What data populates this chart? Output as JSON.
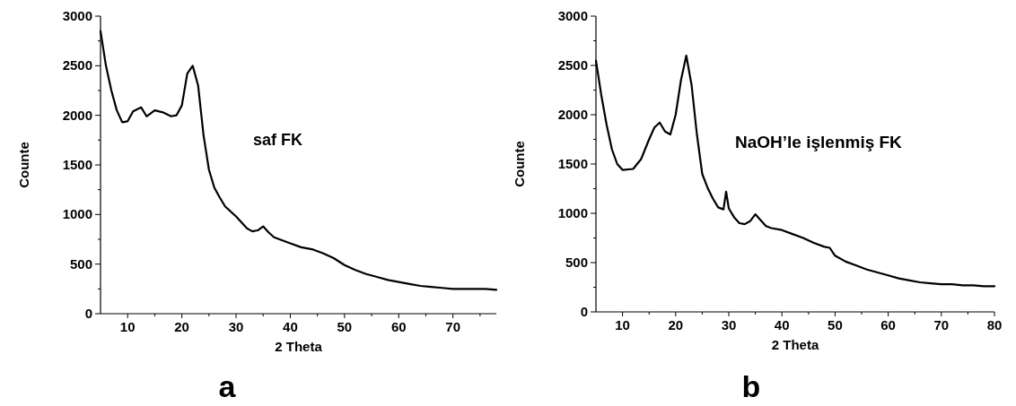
{
  "chart_data": [
    {
      "type": "line",
      "xlabel": "2 Theta",
      "ylabel": "Counte",
      "annotations": [
        "saf FK",
        "a"
      ],
      "xlim": [
        5,
        78
      ],
      "ylim": [
        0,
        3000
      ],
      "xticks": [
        10,
        20,
        30,
        40,
        50,
        60,
        70,
        {
          "value": 15,
          "label": null
        },
        {
          "value": 25,
          "label": null
        },
        {
          "value": 35,
          "label": null
        },
        {
          "value": 45,
          "label": null
        },
        {
          "value": 55,
          "label": null
        },
        {
          "value": 65,
          "label": null
        },
        {
          "value": 75,
          "label": null
        }
      ],
      "yticks": [
        0,
        500,
        1000,
        1500,
        2000,
        2500,
        3000,
        {
          "value": 250,
          "label": null
        },
        {
          "value": 750,
          "label": null
        },
        {
          "value": 1250,
          "label": null
        },
        {
          "value": 1750,
          "label": null
        },
        {
          "value": 2250,
          "label": null
        },
        {
          "value": 2750,
          "label": null
        }
      ],
      "grid": false,
      "marker": "none",
      "line_style": "solid",
      "series": [
        {
          "color": "#000000",
          "x": [
            5,
            6,
            7,
            8,
            9,
            10,
            11,
            12.5,
            13.5,
            15,
            16.5,
            18,
            19,
            20,
            21,
            22,
            23,
            24,
            25,
            26,
            27,
            28,
            30,
            32,
            33,
            34,
            35,
            36,
            37,
            38,
            40,
            42,
            44,
            46,
            48,
            50,
            52,
            54,
            56,
            58,
            60,
            62,
            64,
            66,
            68,
            70,
            72,
            74,
            76,
            78
          ],
          "values": [
            2850,
            2500,
            2250,
            2050,
            1930,
            1940,
            2040,
            2080,
            1990,
            2050,
            2030,
            1990,
            2000,
            2100,
            2420,
            2500,
            2300,
            1800,
            1450,
            1270,
            1170,
            1080,
            980,
            860,
            830,
            840,
            880,
            820,
            770,
            750,
            710,
            670,
            650,
            610,
            560,
            490,
            440,
            400,
            370,
            340,
            320,
            300,
            280,
            270,
            260,
            250,
            250,
            250,
            250,
            240
          ]
        }
      ]
    },
    {
      "type": "line",
      "xlabel": "2 Theta",
      "ylabel": "Counte",
      "annotations": [
        "NaOH’le işlenmiş FK",
        "b"
      ],
      "xlim": [
        5,
        80
      ],
      "ylim": [
        0,
        3000
      ],
      "xticks": [
        10,
        20,
        30,
        40,
        50,
        60,
        70,
        80,
        {
          "value": 15,
          "label": null
        },
        {
          "value": 25,
          "label": null
        },
        {
          "value": 35,
          "label": null
        },
        {
          "value": 45,
          "label": null
        },
        {
          "value": 55,
          "label": null
        },
        {
          "value": 65,
          "label": null
        },
        {
          "value": 75,
          "label": null
        }
      ],
      "yticks": [
        0,
        500,
        1000,
        1500,
        2000,
        2500,
        3000,
        {
          "value": 250,
          "label": null
        },
        {
          "value": 750,
          "label": null
        },
        {
          "value": 1250,
          "label": null
        },
        {
          "value": 1750,
          "label": null
        },
        {
          "value": 2250,
          "label": null
        },
        {
          "value": 2750,
          "label": null
        }
      ],
      "grid": false,
      "marker": "none",
      "line_style": "solid",
      "series": [
        {
          "color": "#000000",
          "x": [
            5,
            6,
            7,
            8,
            9,
            10,
            12,
            13.5,
            15,
            16,
            17,
            18,
            19,
            20,
            21,
            22,
            23,
            24,
            25,
            26,
            27,
            28,
            29,
            29.5,
            30,
            31,
            32,
            33,
            34,
            35,
            36,
            37,
            38,
            40,
            42,
            44,
            46,
            48,
            49,
            50,
            52,
            54,
            56,
            58,
            60,
            62,
            64,
            66,
            68,
            70,
            72,
            74,
            76,
            78,
            80
          ],
          "values": [
            2550,
            2200,
            1900,
            1650,
            1500,
            1440,
            1450,
            1550,
            1750,
            1870,
            1920,
            1830,
            1800,
            2000,
            2350,
            2600,
            2300,
            1800,
            1400,
            1260,
            1150,
            1060,
            1040,
            1220,
            1050,
            960,
            900,
            890,
            920,
            990,
            930,
            870,
            850,
            830,
            790,
            750,
            700,
            660,
            650,
            570,
            510,
            470,
            430,
            400,
            370,
            340,
            320,
            300,
            290,
            280,
            280,
            270,
            270,
            260,
            260
          ]
        }
      ]
    }
  ]
}
